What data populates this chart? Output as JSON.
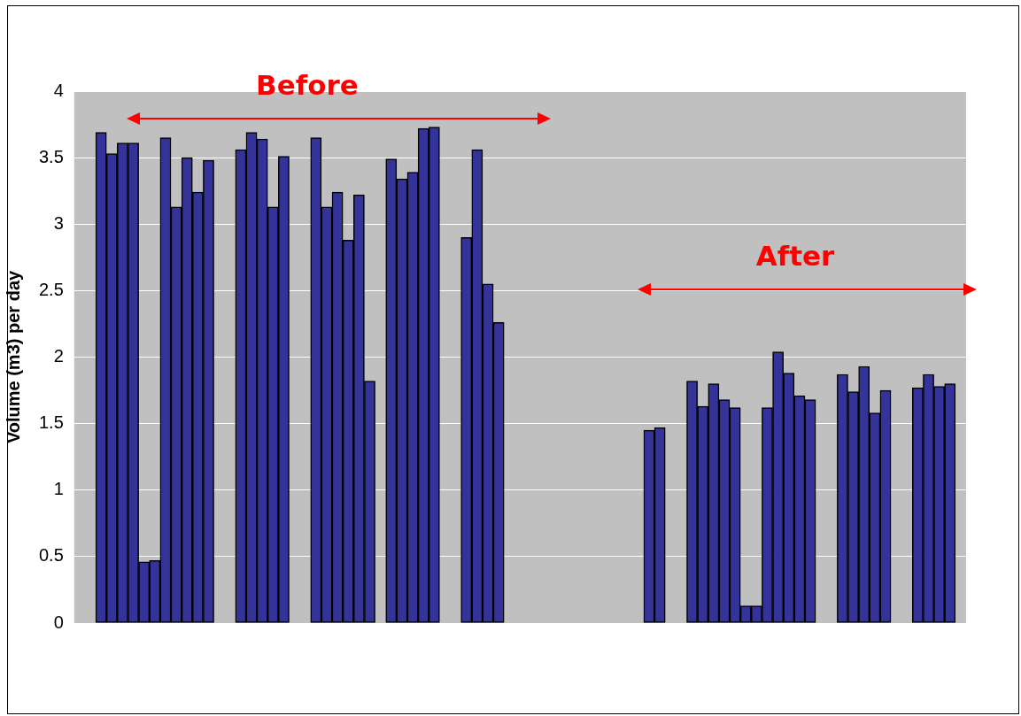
{
  "chart_data": {
    "type": "bar",
    "ylabel": "Volume (m3) per day",
    "categories": [
      null,
      null,
      null,
      null,
      null,
      null,
      null,
      null,
      null,
      null,
      null,
      null,
      null,
      null,
      null,
      null,
      null,
      null,
      null,
      null,
      null,
      null,
      null,
      null,
      null,
      null,
      null,
      null,
      null,
      null,
      null,
      null,
      null,
      null,
      null,
      null,
      null,
      null,
      null,
      null,
      null,
      null,
      null,
      null,
      null,
      null,
      null,
      null,
      null,
      null,
      null,
      null,
      null,
      null,
      null,
      null,
      null,
      null,
      null,
      null,
      null,
      null,
      null,
      null,
      null,
      null,
      null,
      null,
      null,
      null,
      null,
      null,
      null,
      null,
      null,
      null,
      null,
      null,
      null,
      null,
      null,
      null,
      null
    ],
    "values": [
      null,
      null,
      3.69,
      3.53,
      3.61,
      3.61,
      0.46,
      0.47,
      3.65,
      3.13,
      3.5,
      3.24,
      3.48,
      null,
      null,
      3.56,
      3.69,
      3.64,
      3.13,
      3.51,
      null,
      null,
      3.65,
      3.13,
      3.24,
      2.88,
      3.22,
      1.82,
      null,
      3.49,
      3.34,
      3.39,
      3.72,
      3.73,
      null,
      null,
      2.9,
      3.56,
      2.55,
      2.26,
      null,
      null,
      null,
      null,
      null,
      null,
      null,
      null,
      null,
      null,
      null,
      null,
      null,
      1.45,
      1.47,
      null,
      null,
      1.82,
      1.63,
      1.8,
      1.68,
      1.62,
      0.13,
      0.13,
      1.62,
      2.04,
      1.88,
      1.71,
      1.68,
      null,
      null,
      1.87,
      1.74,
      1.93,
      1.58,
      1.75,
      null,
      null,
      1.77,
      1.87,
      1.78,
      1.8,
      null
    ],
    "color": "#333399",
    "ylim": [
      0,
      4
    ],
    "yticks": [
      0,
      0.5,
      1,
      1.5,
      2,
      2.5,
      3,
      3.5,
      4
    ],
    "grid": "y",
    "tick_labels": "y",
    "annotations": [
      "Before",
      "After"
    ]
  }
}
